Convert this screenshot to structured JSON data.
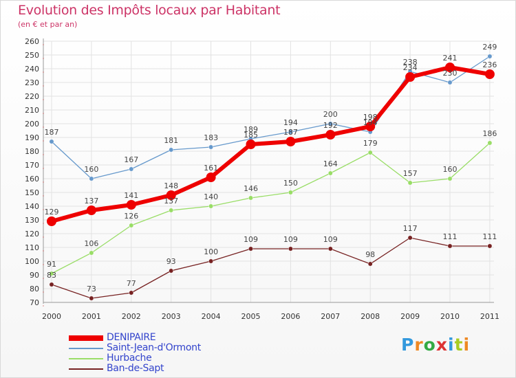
{
  "header": {
    "title": "Evolution des Impôts locaux par Habitant",
    "subtitle": "(en € et par an)"
  },
  "logo": {
    "text": "Proxiti"
  },
  "chart_data": {
    "type": "line",
    "title": "Evolution des Impôts locaux par Habitant",
    "subtitle": "(en € et par an)",
    "xlabel": "",
    "ylabel": "",
    "x": [
      2000,
      2001,
      2002,
      2003,
      2004,
      2005,
      2006,
      2007,
      2008,
      2009,
      2010,
      2011
    ],
    "ylim": [
      70,
      260
    ],
    "ytick_step": 10,
    "grid": true,
    "legend_position": "bottom-left",
    "series": [
      {
        "name": "DENIPAIRE",
        "color": "#ee0000",
        "values": [
          129,
          137,
          141,
          148,
          161,
          185,
          187,
          192,
          198,
          234,
          241,
          236
        ]
      },
      {
        "name": "Saint-Jean-d'Ormont",
        "color": "#6699cc",
        "values": [
          187,
          160,
          167,
          181,
          183,
          189,
          194,
          200,
          194,
          238,
          230,
          249
        ]
      },
      {
        "name": "Hurbache",
        "color": "#99dd66",
        "values": [
          91,
          106,
          126,
          137,
          140,
          146,
          150,
          164,
          179,
          157,
          160,
          186
        ]
      },
      {
        "name": "Ban-de-Sapt",
        "color": "#772222",
        "values": [
          83,
          73,
          77,
          93,
          100,
          109,
          109,
          109,
          98,
          117,
          111,
          111
        ]
      }
    ]
  }
}
